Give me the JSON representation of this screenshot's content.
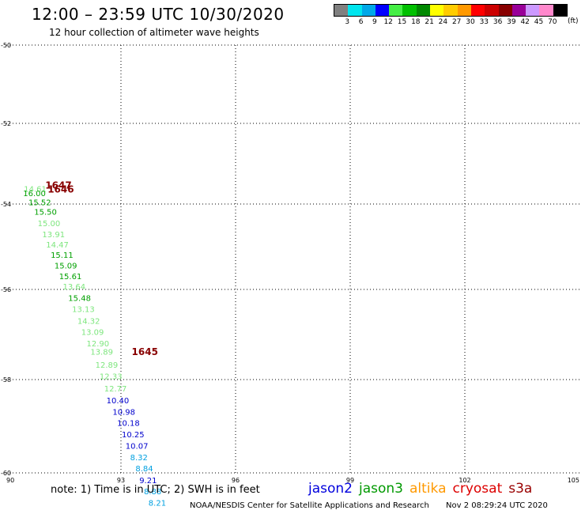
{
  "header": {
    "title": "12:00 – 23:59 UTC 10/30/2020",
    "subtitle": "12 hour collection of altimeter wave heights"
  },
  "legend": {
    "colors": [
      "#808080",
      "#00e5ee",
      "#00a8e8",
      "#0000ff",
      "#44ee44",
      "#00c000",
      "#008800",
      "#ffff00",
      "#ffcc00",
      "#ff9900",
      "#ff0000",
      "#cc0000",
      "#880000",
      "#990099",
      "#cc99ff",
      "#ff88cc",
      "#000000"
    ],
    "labels": [
      "3",
      "6",
      "9",
      "12",
      "15",
      "18",
      "21",
      "24",
      "27",
      "30",
      "33",
      "36",
      "39",
      "42",
      "45",
      "70"
    ],
    "unit": "(ft)"
  },
  "axes": {
    "x_ticks": [
      "90",
      "93",
      "96",
      "99",
      "102",
      "105"
    ],
    "y_ticks": [
      "-50",
      "-52",
      "-54",
      "-56",
      "-58",
      "-60"
    ]
  },
  "chart_data": {
    "type": "scatter",
    "x_range": [
      90,
      105
    ],
    "y_range": [
      -60,
      -50
    ],
    "swh_points": [
      {
        "lon": 90.46,
        "lat": -53.7,
        "label": "14.61",
        "color": "#7ee67e"
      },
      {
        "lon": 90.44,
        "lat": -53.8,
        "label": "16.00",
        "color": "#00a000"
      },
      {
        "lon": 90.58,
        "lat": -54.03,
        "label": "15.52",
        "color": "#00a000"
      },
      {
        "lon": 90.73,
        "lat": -54.25,
        "label": "15.50",
        "color": "#00a000"
      },
      {
        "lon": 90.82,
        "lat": -54.52,
        "label": "15.00",
        "color": "#7ee67e"
      },
      {
        "lon": 90.94,
        "lat": -54.78,
        "label": "13.91",
        "color": "#7ee67e"
      },
      {
        "lon": 91.04,
        "lat": -55.02,
        "label": "14.47",
        "color": "#7ee67e"
      },
      {
        "lon": 91.16,
        "lat": -55.26,
        "label": "15.11",
        "color": "#00a000"
      },
      {
        "lon": 91.26,
        "lat": -55.51,
        "label": "15.09",
        "color": "#00a000"
      },
      {
        "lon": 91.38,
        "lat": -55.76,
        "label": "15.61",
        "color": "#00a000"
      },
      {
        "lon": 91.48,
        "lat": -56.0,
        "label": "13.64",
        "color": "#7ee67e"
      },
      {
        "lon": 91.62,
        "lat": -56.25,
        "label": "15.48",
        "color": "#00a000"
      },
      {
        "lon": 91.72,
        "lat": -56.5,
        "label": "13.13",
        "color": "#7ee67e"
      },
      {
        "lon": 91.86,
        "lat": -56.76,
        "label": "14.32",
        "color": "#7ee67e"
      },
      {
        "lon": 91.96,
        "lat": -57.01,
        "label": "13.09",
        "color": "#7ee67e"
      },
      {
        "lon": 92.1,
        "lat": -57.26,
        "label": "12.90",
        "color": "#7ee67e"
      },
      {
        "lon": 92.2,
        "lat": -57.45,
        "label": "13.89",
        "color": "#7ee67e"
      },
      {
        "lon": 92.33,
        "lat": -57.74,
        "label": "12.89",
        "color": "#7ee67e"
      },
      {
        "lon": 92.44,
        "lat": -57.99,
        "label": "12.33",
        "color": "#7ee67e"
      },
      {
        "lon": 92.56,
        "lat": -58.25,
        "label": "12.77",
        "color": "#7ee67e"
      },
      {
        "lon": 92.62,
        "lat": -58.51,
        "label": "10.40",
        "color": "#0000cc"
      },
      {
        "lon": 92.78,
        "lat": -58.75,
        "label": "10.98",
        "color": "#0000cc"
      },
      {
        "lon": 92.9,
        "lat": -58.99,
        "label": "10.18",
        "color": "#0000cc"
      },
      {
        "lon": 93.02,
        "lat": -59.24,
        "label": "10.25",
        "color": "#0000cc"
      },
      {
        "lon": 93.12,
        "lat": -59.48,
        "label": "10.07",
        "color": "#0000cc"
      },
      {
        "lon": 93.24,
        "lat": -59.73,
        "label": "8.32",
        "color": "#00a0e0"
      },
      {
        "lon": 93.38,
        "lat": -59.97,
        "label": "8.84",
        "color": "#00a0e0"
      },
      {
        "lon": 93.48,
        "lat": -60.22,
        "label": "9.21",
        "color": "#0000cc"
      },
      {
        "lon": 93.6,
        "lat": -60.46,
        "label": "8.88",
        "color": "#00a0e0"
      },
      {
        "lon": 93.72,
        "lat": -60.7,
        "label": "8.21",
        "color": "#00a0e0"
      }
    ],
    "time_labels": [
      {
        "lon": 91.02,
        "lat": -53.62,
        "label": "1647",
        "color": "#880000"
      },
      {
        "lon": 91.08,
        "lat": -53.72,
        "label": "1646",
        "color": "#880000"
      },
      {
        "lon": 93.28,
        "lat": -57.46,
        "label": "1645",
        "color": "#880000"
      }
    ]
  },
  "footer": {
    "note": "note:  1) Time is in UTC;  2) SWH is in feet",
    "satellites": [
      {
        "name": "jason2",
        "color": "#0000dd"
      },
      {
        "name": "jason3",
        "color": "#009900"
      },
      {
        "name": "altika",
        "color": "#ff9900"
      },
      {
        "name": "cryosat",
        "color": "#dd0000"
      },
      {
        "name": "s3a",
        "color": "#990000"
      }
    ],
    "credit": "NOAA/NESDIS Center for Satellite Applications and Research",
    "timestamp": "Nov  2 08:29:24 UTC 2020"
  }
}
